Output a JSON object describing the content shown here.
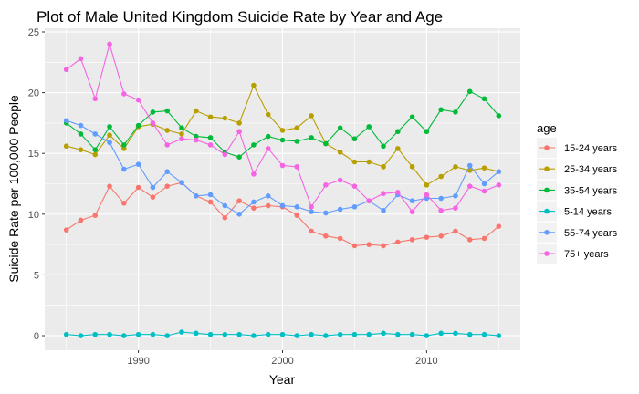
{
  "chart_data": {
    "type": "line",
    "title": "Plot of Male United Kingdom Suicide Rate by Year and Age",
    "xlabel": "Year",
    "ylabel": "Suicide Rate per 100,000 People",
    "xlim": [
      1983.5,
      2016.5
    ],
    "ylim": [
      -1.2,
      25.3
    ],
    "xticks": [
      1990,
      2000,
      2010
    ],
    "yticks": [
      0,
      5,
      10,
      15,
      20,
      25
    ],
    "grid": true,
    "legend": {
      "title": "age",
      "position": "right"
    },
    "x": [
      1985,
      1986,
      1987,
      1988,
      1989,
      1990,
      1991,
      1992,
      1993,
      1994,
      1995,
      1996,
      1997,
      1998,
      1999,
      2000,
      2001,
      2002,
      2003,
      2004,
      2005,
      2006,
      2007,
      2008,
      2009,
      2010,
      2011,
      2012,
      2013,
      2014,
      2015
    ],
    "series": [
      {
        "name": "15-24 years",
        "color": "#F8766D",
        "values": [
          8.7,
          9.5,
          9.9,
          12.3,
          10.9,
          12.2,
          11.4,
          12.3,
          12.6,
          11.5,
          11.0,
          9.7,
          11.1,
          10.5,
          10.7,
          10.6,
          9.9,
          8.6,
          8.2,
          8.0,
          7.4,
          7.5,
          7.4,
          7.7,
          7.9,
          8.1,
          8.2,
          8.6,
          7.9,
          8.0,
          9.0
        ]
      },
      {
        "name": "25-34 years",
        "color": "#B79F00",
        "values": [
          15.6,
          15.3,
          14.9,
          16.5,
          15.4,
          17.2,
          17.4,
          16.9,
          16.6,
          18.5,
          18.0,
          17.9,
          17.5,
          20.6,
          18.2,
          16.9,
          17.1,
          18.1,
          15.8,
          15.1,
          14.3,
          14.3,
          13.9,
          15.4,
          13.9,
          12.4,
          13.1,
          13.9,
          13.6,
          13.8,
          13.5
        ]
      },
      {
        "name": "35-54 years",
        "color": "#00BA38",
        "values": [
          17.5,
          16.6,
          15.3,
          17.2,
          15.7,
          17.3,
          18.4,
          18.5,
          17.1,
          16.4,
          16.3,
          15.1,
          14.7,
          15.7,
          16.4,
          16.1,
          16.0,
          16.3,
          15.8,
          17.1,
          16.2,
          17.2,
          15.6,
          16.8,
          18.0,
          16.8,
          18.6,
          18.4,
          20.1,
          19.5,
          18.1
        ]
      },
      {
        "name": "5-14 years",
        "color": "#00BFC4",
        "values": [
          0.1,
          0.0,
          0.1,
          0.1,
          0.0,
          0.1,
          0.1,
          0.0,
          0.3,
          0.2,
          0.1,
          0.1,
          0.1,
          0.0,
          0.1,
          0.1,
          0.0,
          0.1,
          0.0,
          0.1,
          0.1,
          0.1,
          0.2,
          0.1,
          0.1,
          0.0,
          0.2,
          0.2,
          0.1,
          0.1,
          0.0
        ]
      },
      {
        "name": "55-74 years",
        "color": "#619CFF",
        "values": [
          17.7,
          17.3,
          16.6,
          15.9,
          13.7,
          14.1,
          12.2,
          13.5,
          12.6,
          11.5,
          11.6,
          10.7,
          10.0,
          11.0,
          11.5,
          10.7,
          10.6,
          10.2,
          10.1,
          10.4,
          10.6,
          11.1,
          10.3,
          11.6,
          11.1,
          11.3,
          11.3,
          11.5,
          14.0,
          12.5,
          13.5
        ]
      },
      {
        "name": "75+ years",
        "color": "#F564E3",
        "values": [
          21.9,
          22.8,
          19.5,
          24.0,
          19.9,
          19.4,
          17.5,
          15.7,
          16.2,
          16.1,
          15.7,
          14.9,
          16.8,
          13.3,
          15.4,
          14.0,
          13.9,
          10.6,
          12.4,
          12.8,
          12.3,
          11.1,
          11.7,
          11.8,
          10.2,
          11.6,
          10.3,
          10.5,
          12.3,
          11.9,
          12.4
        ]
      }
    ]
  }
}
